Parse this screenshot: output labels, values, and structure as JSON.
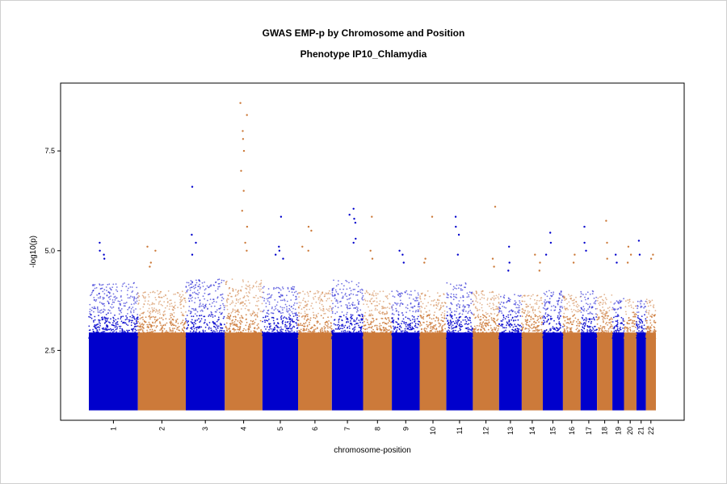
{
  "chart_data": {
    "type": "scatter",
    "subtype": "manhattan",
    "title": "GWAS EMP-p by Chromosome and Position",
    "subtitle": "Phenotype IP10_Chlamydia",
    "xlabel": "chromosome-position",
    "ylabel": "-log10(p)",
    "ylim": [
      0.75,
      9.2
    ],
    "yticks": [
      2.5,
      5.0,
      7.5
    ],
    "ytick_labels": [
      "2.5",
      "5.0",
      "7.5"
    ],
    "grid": false,
    "legend": "none",
    "baseline": 1.0,
    "colors": {
      "odd": "#0000cc",
      "even": "#cc7a3a"
    },
    "chromosomes": [
      {
        "label": "1",
        "rel_length": 249,
        "ceiling": 4.2,
        "peaks": [
          5.2,
          5.0,
          4.9,
          4.8
        ]
      },
      {
        "label": "2",
        "rel_length": 243,
        "ceiling": 4.0,
        "peaks": [
          5.1,
          5.0,
          4.7,
          4.6
        ]
      },
      {
        "label": "3",
        "rel_length": 198,
        "ceiling": 4.3,
        "peaks": [
          6.6,
          5.4,
          5.2,
          4.9
        ]
      },
      {
        "label": "4",
        "rel_length": 191,
        "ceiling": 4.3,
        "peaks": [
          8.7,
          8.4,
          8.0,
          7.8,
          7.5,
          7.0,
          6.5,
          6.0,
          5.6,
          5.2,
          5.0
        ]
      },
      {
        "label": "5",
        "rel_length": 181,
        "ceiling": 4.1,
        "peaks": [
          5.85,
          5.1,
          5.0,
          4.9,
          4.8
        ]
      },
      {
        "label": "6",
        "rel_length": 171,
        "ceiling": 4.0,
        "peaks": [
          5.6,
          5.5,
          5.1,
          5.0
        ]
      },
      {
        "label": "7",
        "rel_length": 159,
        "ceiling": 4.3,
        "peaks": [
          6.05,
          5.9,
          5.8,
          5.7,
          5.3,
          5.2
        ]
      },
      {
        "label": "8",
        "rel_length": 146,
        "ceiling": 4.0,
        "peaks": [
          5.85,
          5.0,
          4.8
        ]
      },
      {
        "label": "9",
        "rel_length": 141,
        "ceiling": 4.0,
        "peaks": [
          5.0,
          4.9,
          4.7
        ]
      },
      {
        "label": "10",
        "rel_length": 135,
        "ceiling": 4.0,
        "peaks": [
          5.85,
          4.8,
          4.7
        ]
      },
      {
        "label": "11",
        "rel_length": 135,
        "ceiling": 4.2,
        "peaks": [
          5.85,
          5.6,
          5.4,
          4.9
        ]
      },
      {
        "label": "12",
        "rel_length": 133,
        "ceiling": 4.0,
        "peaks": [
          6.1,
          4.8,
          4.6
        ]
      },
      {
        "label": "13",
        "rel_length": 115,
        "ceiling": 3.9,
        "peaks": [
          5.1,
          4.7,
          4.5
        ]
      },
      {
        "label": "14",
        "rel_length": 107,
        "ceiling": 3.9,
        "peaks": [
          4.9,
          4.7,
          4.5
        ]
      },
      {
        "label": "15",
        "rel_length": 102,
        "ceiling": 4.0,
        "peaks": [
          5.45,
          5.2,
          4.9
        ]
      },
      {
        "label": "16",
        "rel_length": 90,
        "ceiling": 3.9,
        "peaks": [
          4.9,
          4.7
        ]
      },
      {
        "label": "17",
        "rel_length": 83,
        "ceiling": 4.0,
        "peaks": [
          5.6,
          5.2,
          5.0
        ]
      },
      {
        "label": "18",
        "rel_length": 78,
        "ceiling": 3.9,
        "peaks": [
          5.75,
          5.2,
          4.8
        ]
      },
      {
        "label": "19",
        "rel_length": 59,
        "ceiling": 3.8,
        "peaks": [
          4.9,
          4.7
        ]
      },
      {
        "label": "20",
        "rel_length": 63,
        "ceiling": 3.8,
        "peaks": [
          5.1,
          4.9,
          4.7
        ]
      },
      {
        "label": "21",
        "rel_length": 48,
        "ceiling": 3.8,
        "peaks": [
          5.25,
          4.9
        ]
      },
      {
        "label": "22",
        "rel_length": 51,
        "ceiling": 3.8,
        "peaks": [
          4.9,
          4.8
        ]
      }
    ]
  }
}
